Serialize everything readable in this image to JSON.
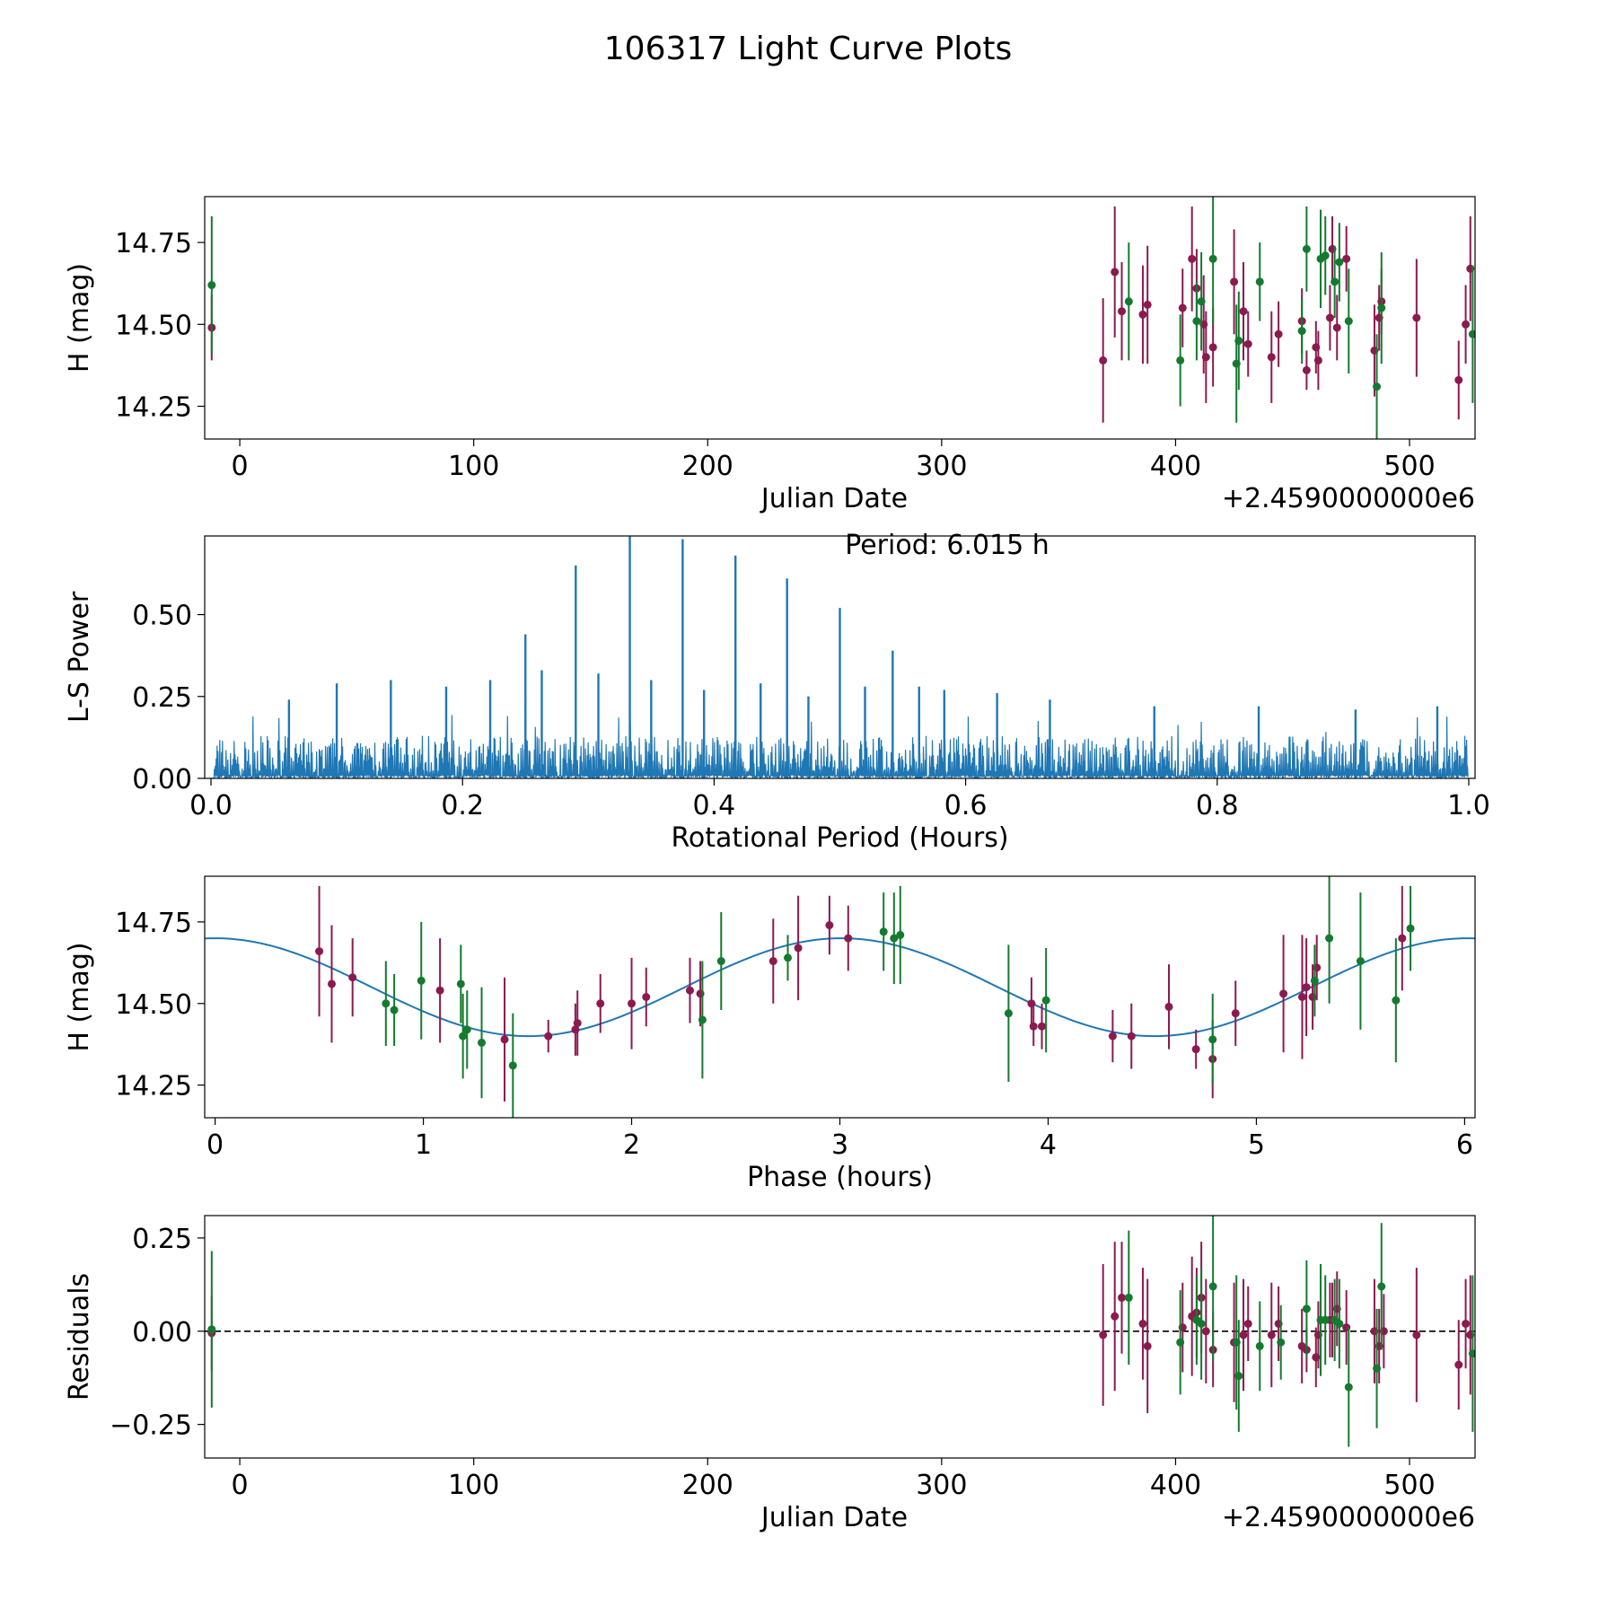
{
  "figure_title": "106317 Light Curve Plots",
  "colors": {
    "red": "#8b1a4f",
    "green": "#147a2f",
    "line": "#1f77b4",
    "axis": "#000000"
  },
  "chart_data": [
    {
      "id": "panel1",
      "type": "scatter",
      "title": "",
      "xlabel": "Julian Date",
      "ylabel": "H (mag)",
      "x_offset_label": "+2.4590000000e6",
      "xlim": [
        -15,
        528
      ],
      "ylim": [
        14.15,
        14.89
      ],
      "xticks": [
        0,
        100,
        200,
        300,
        400,
        500
      ],
      "yticks": [
        14.25,
        14.5,
        14.75
      ],
      "ytick_labels": [
        "14.25",
        "14.50",
        "14.75"
      ],
      "series": [
        {
          "name": "red",
          "color": "red",
          "points": [
            [
              -12,
              14.49,
              0.1
            ],
            [
              369,
              14.39,
              0.19
            ],
            [
              374,
              14.66,
              0.2
            ],
            [
              377,
              14.54,
              0.15
            ],
            [
              386,
              14.53,
              0.15
            ],
            [
              388,
              14.56,
              0.18
            ],
            [
              403,
              14.55,
              0.12
            ],
            [
              407,
              14.7,
              0.16
            ],
            [
              409,
              14.61,
              0.12
            ],
            [
              412,
              14.5,
              0.15
            ],
            [
              413,
              14.4,
              0.14
            ],
            [
              416,
              14.43,
              0.12
            ],
            [
              425,
              14.63,
              0.16
            ],
            [
              429,
              14.54,
              0.15
            ],
            [
              431,
              14.44,
              0.1
            ],
            [
              441,
              14.4,
              0.14
            ],
            [
              444,
              14.47,
              0.1
            ],
            [
              454,
              14.51,
              0.1
            ],
            [
              456,
              14.36,
              0.06
            ],
            [
              460,
              14.43,
              0.08
            ],
            [
              461,
              14.39,
              0.09
            ],
            [
              466,
              14.52,
              0.1
            ],
            [
              467,
              14.73,
              0.1
            ],
            [
              469,
              14.49,
              0.1
            ],
            [
              473,
              14.7,
              0.1
            ],
            [
              485,
              14.42,
              0.14
            ],
            [
              487,
              14.52,
              0.1
            ],
            [
              488,
              14.57,
              0.1
            ],
            [
              503,
              14.52,
              0.18
            ],
            [
              521,
              14.33,
              0.12
            ],
            [
              524,
              14.5,
              0.12
            ],
            [
              526,
              14.67,
              0.16
            ]
          ]
        },
        {
          "name": "green",
          "color": "green",
          "points": [
            [
              -12,
              14.62,
              0.21
            ],
            [
              380,
              14.57,
              0.18
            ],
            [
              402,
              14.39,
              0.14
            ],
            [
              409,
              14.51,
              0.12
            ],
            [
              411,
              14.57,
              0.15
            ],
            [
              416,
              14.7,
              0.2
            ],
            [
              426,
              14.38,
              0.18
            ],
            [
              427,
              14.45,
              0.15
            ],
            [
              436,
              14.63,
              0.12
            ],
            [
              454,
              14.48,
              0.1
            ],
            [
              456,
              14.73,
              0.13
            ],
            [
              462,
              14.7,
              0.15
            ],
            [
              464,
              14.71,
              0.12
            ],
            [
              468,
              14.63,
              0.11
            ],
            [
              470,
              14.69,
              0.12
            ],
            [
              474,
              14.51,
              0.16
            ],
            [
              486,
              14.31,
              0.16
            ],
            [
              488,
              14.55,
              0.17
            ],
            [
              527,
              14.47,
              0.21
            ]
          ]
        }
      ]
    },
    {
      "id": "panel2",
      "type": "line",
      "title": "",
      "annotation": "Period: 6.015 h",
      "xlabel": "Rotational Period (Hours)",
      "ylabel": "L-S Power",
      "xlim": [
        -0.005,
        1.005
      ],
      "ylim": [
        0.0,
        0.74
      ],
      "xticks": [
        0.0,
        0.2,
        0.4,
        0.6,
        0.8,
        1.0
      ],
      "xtick_labels": [
        "0.0",
        "0.2",
        "0.4",
        "0.6",
        "0.8",
        "1.0"
      ],
      "yticks": [
        0.0,
        0.25,
        0.5
      ],
      "ytick_labels": [
        "0.00",
        "0.25",
        "0.50"
      ],
      "noise_seed": 7,
      "noise_samples": 1400,
      "peaks": [
        [
          0.062,
          0.24
        ],
        [
          0.1,
          0.29
        ],
        [
          0.143,
          0.3
        ],
        [
          0.187,
          0.28
        ],
        [
          0.222,
          0.3
        ],
        [
          0.25,
          0.44
        ],
        [
          0.263,
          0.33
        ],
        [
          0.29,
          0.65
        ],
        [
          0.308,
          0.32
        ],
        [
          0.333,
          0.74
        ],
        [
          0.35,
          0.3
        ],
        [
          0.375,
          0.73
        ],
        [
          0.392,
          0.27
        ],
        [
          0.417,
          0.68
        ],
        [
          0.437,
          0.29
        ],
        [
          0.458,
          0.61
        ],
        [
          0.475,
          0.25
        ],
        [
          0.5,
          0.52
        ],
        [
          0.52,
          0.28
        ],
        [
          0.542,
          0.39
        ],
        [
          0.563,
          0.28
        ],
        [
          0.583,
          0.27
        ],
        [
          0.625,
          0.26
        ],
        [
          0.667,
          0.24
        ],
        [
          0.75,
          0.22
        ],
        [
          0.833,
          0.22
        ],
        [
          0.91,
          0.21
        ],
        [
          0.975,
          0.22
        ]
      ]
    },
    {
      "id": "panel3",
      "type": "scatter",
      "title": "",
      "xlabel": "Phase (hours)",
      "ylabel": "H (mag)",
      "xlim": [
        -0.05,
        6.05
      ],
      "ylim": [
        14.15,
        14.89
      ],
      "xticks": [
        0,
        1,
        2,
        3,
        4,
        5,
        6
      ],
      "yticks": [
        14.25,
        14.5,
        14.75
      ],
      "ytick_labels": [
        "14.25",
        "14.50",
        "14.75"
      ],
      "model": {
        "mean": 14.55,
        "amplitude": 0.15,
        "period": 3.0075,
        "phase_of_max": 0.0
      },
      "series": [
        {
          "name": "red",
          "color": "red",
          "points": [
            [
              0.5,
              14.66,
              0.2
            ],
            [
              0.56,
              14.56,
              0.18
            ],
            [
              0.66,
              14.58,
              0.12
            ],
            [
              1.08,
              14.54,
              0.16
            ],
            [
              1.39,
              14.39,
              0.19
            ],
            [
              1.6,
              14.4,
              0.05
            ],
            [
              1.73,
              14.42,
              0.08
            ],
            [
              1.74,
              14.44,
              0.1
            ],
            [
              1.85,
              14.5,
              0.09
            ],
            [
              2.0,
              14.5,
              0.14
            ],
            [
              2.07,
              14.52,
              0.09
            ],
            [
              2.28,
              14.54,
              0.1
            ],
            [
              2.33,
              14.53,
              0.1
            ],
            [
              2.68,
              14.63,
              0.13
            ],
            [
              2.8,
              14.67,
              0.16
            ],
            [
              2.95,
              14.74,
              0.09
            ],
            [
              3.04,
              14.7,
              0.1
            ],
            [
              3.93,
              14.43,
              0.06
            ],
            [
              3.92,
              14.5,
              0.08
            ],
            [
              3.97,
              14.43,
              0.07
            ],
            [
              4.31,
              14.4,
              0.08
            ],
            [
              4.4,
              14.4,
              0.1
            ],
            [
              4.58,
              14.49,
              0.13
            ],
            [
              4.71,
              14.36,
              0.06
            ],
            [
              4.79,
              14.33,
              0.12
            ],
            [
              4.9,
              14.47,
              0.1
            ],
            [
              5.13,
              14.53,
              0.18
            ],
            [
              5.22,
              14.52,
              0.19
            ],
            [
              5.24,
              14.55,
              0.15
            ],
            [
              5.27,
              14.52,
              0.1
            ],
            [
              5.29,
              14.61,
              0.1
            ],
            [
              5.7,
              14.7,
              0.16
            ]
          ]
        },
        {
          "name": "green",
          "color": "green",
          "points": [
            [
              0.82,
              14.5,
              0.13
            ],
            [
              0.86,
              14.48,
              0.11
            ],
            [
              0.99,
              14.57,
              0.18
            ],
            [
              1.18,
              14.56,
              0.12
            ],
            [
              1.19,
              14.4,
              0.13
            ],
            [
              1.21,
              14.42,
              0.12
            ],
            [
              1.28,
              14.38,
              0.17
            ],
            [
              1.43,
              14.31,
              0.16
            ],
            [
              2.34,
              14.45,
              0.18
            ],
            [
              2.43,
              14.63,
              0.15
            ],
            [
              2.75,
              14.64,
              0.07
            ],
            [
              3.21,
              14.72,
              0.12
            ],
            [
              3.26,
              14.7,
              0.14
            ],
            [
              3.29,
              14.71,
              0.15
            ],
            [
              3.81,
              14.47,
              0.21
            ],
            [
              3.99,
              14.51,
              0.16
            ],
            [
              4.79,
              14.39,
              0.14
            ],
            [
              5.28,
              14.57,
              0.11
            ],
            [
              5.35,
              14.7,
              0.2
            ],
            [
              5.5,
              14.63,
              0.21
            ],
            [
              5.67,
              14.51,
              0.19
            ],
            [
              5.74,
              14.73,
              0.13
            ]
          ]
        }
      ]
    },
    {
      "id": "panel4",
      "type": "scatter",
      "title": "",
      "xlabel": "Julian Date",
      "ylabel": "Residuals",
      "x_offset_label": "+2.4590000000e6",
      "xlim": [
        -15,
        528
      ],
      "ylim": [
        -0.34,
        0.31
      ],
      "xticks": [
        0,
        100,
        200,
        300,
        400,
        500
      ],
      "yticks": [
        -0.25,
        0.0,
        0.25
      ],
      "ytick_labels": [
        "−0.25",
        "0.00",
        "0.25"
      ],
      "zero_line": true,
      "series": [
        {
          "name": "red",
          "color": "red",
          "points": [
            [
              -12,
              -0.005,
              0.1
            ],
            [
              369,
              -0.01,
              0.19
            ],
            [
              374,
              0.04,
              0.2
            ],
            [
              377,
              0.09,
              0.15
            ],
            [
              386,
              0.02,
              0.15
            ],
            [
              388,
              -0.04,
              0.18
            ],
            [
              403,
              0.01,
              0.12
            ],
            [
              407,
              0.04,
              0.16
            ],
            [
              409,
              0.05,
              0.12
            ],
            [
              411,
              0.09,
              0.15
            ],
            [
              413,
              0.0,
              0.14
            ],
            [
              416,
              -0.05,
              0.1
            ],
            [
              425,
              -0.03,
              0.16
            ],
            [
              429,
              -0.01,
              0.15
            ],
            [
              431,
              0.02,
              0.1
            ],
            [
              441,
              -0.01,
              0.14
            ],
            [
              444,
              0.02,
              0.1
            ],
            [
              454,
              -0.04,
              0.1
            ],
            [
              456,
              -0.05,
              0.06
            ],
            [
              460,
              -0.07,
              0.08
            ],
            [
              461,
              -0.01,
              0.09
            ],
            [
              466,
              0.03,
              0.1
            ],
            [
              467,
              0.03,
              0.1
            ],
            [
              469,
              0.06,
              0.1
            ],
            [
              473,
              0.01,
              0.1
            ],
            [
              485,
              0.0,
              0.14
            ],
            [
              487,
              -0.04,
              0.1
            ],
            [
              489,
              0.0,
              0.1
            ],
            [
              503,
              -0.01,
              0.18
            ],
            [
              521,
              -0.09,
              0.12
            ],
            [
              524,
              0.02,
              0.12
            ],
            [
              526,
              -0.01,
              0.16
            ]
          ]
        },
        {
          "name": "green",
          "color": "green",
          "points": [
            [
              -12,
              0.005,
              0.21
            ],
            [
              380,
              0.09,
              0.18
            ],
            [
              402,
              -0.03,
              0.14
            ],
            [
              409,
              0.03,
              0.12
            ],
            [
              411,
              0.02,
              0.15
            ],
            [
              416,
              0.12,
              0.2
            ],
            [
              426,
              -0.03,
              0.18
            ],
            [
              427,
              -0.12,
              0.15
            ],
            [
              436,
              -0.04,
              0.12
            ],
            [
              445,
              -0.03,
              0.1
            ],
            [
              456,
              0.06,
              0.13
            ],
            [
              462,
              0.03,
              0.15
            ],
            [
              464,
              0.03,
              0.12
            ],
            [
              468,
              0.03,
              0.11
            ],
            [
              470,
              0.02,
              0.12
            ],
            [
              474,
              -0.15,
              0.16
            ],
            [
              486,
              -0.1,
              0.16
            ],
            [
              488,
              0.12,
              0.17
            ],
            [
              527,
              -0.06,
              0.21
            ]
          ]
        }
      ]
    }
  ]
}
